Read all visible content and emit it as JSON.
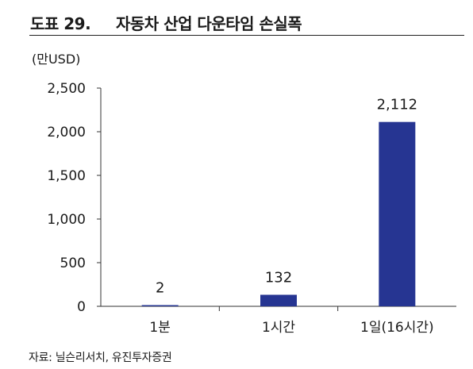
{
  "figure": {
    "label": "도표 29.",
    "title": "자동차 산업 다운타임 손실폭",
    "source": "자료: 닐슨리서치, 유진투자증권"
  },
  "chart_data": {
    "type": "bar",
    "unit_label": "(만USD)",
    "categories": [
      "1분",
      "1시간",
      "1일(16시간)"
    ],
    "values": [
      2,
      132,
      2112
    ],
    "value_labels": [
      "2",
      "132",
      "2,112"
    ],
    "ylim": [
      0,
      2500
    ],
    "yticks": [
      0,
      500,
      1000,
      1500,
      2000,
      2500
    ],
    "ytick_labels": [
      "0",
      "500",
      "1,000",
      "1,500",
      "2,000",
      "2,500"
    ],
    "bar_color": "#263592",
    "grid": false,
    "legend": "none"
  }
}
